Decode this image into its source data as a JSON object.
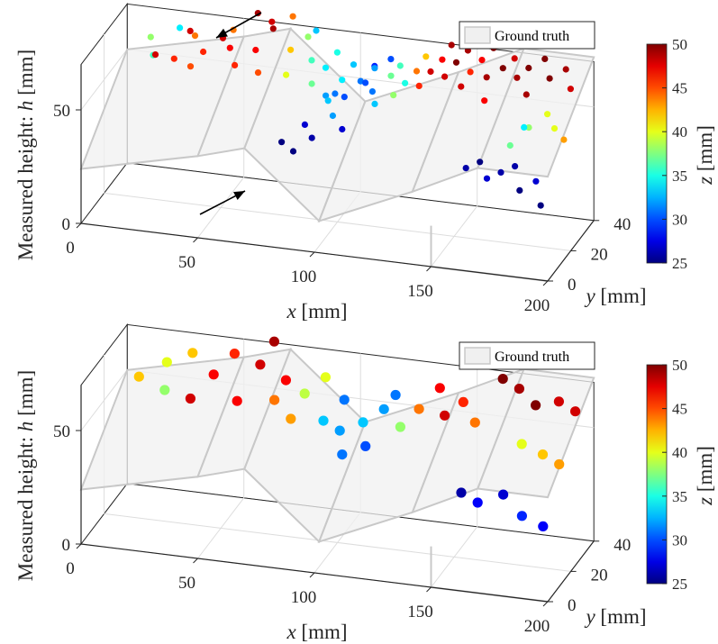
{
  "chart_data": [
    {
      "type": "scatter",
      "title": "",
      "subtitle": "",
      "xlabel": "x [mm]",
      "ylabel": "y [mm]",
      "zlabel": "Measured height:  h [mm]",
      "xlabel_var": "x",
      "xlabel_unit": "[mm]",
      "ylabel_var": "y",
      "ylabel_unit": "[mm]",
      "zlabel_prefix": "Measured height:  ",
      "zlabel_var": "h",
      "zlabel_unit": "[mm]",
      "xlim": [
        0,
        200
      ],
      "ylim": [
        0,
        40
      ],
      "zlim": [
        0,
        70
      ],
      "xticks": [
        "0",
        "50",
        "100",
        "150",
        "200"
      ],
      "yticks": [
        "0",
        "20",
        "40"
      ],
      "zticks": [
        "0",
        "50"
      ],
      "grid": true,
      "legend": {
        "position": "top-right",
        "entries": [
          "Ground truth"
        ]
      },
      "colorbar": {
        "label_var": "z",
        "label_unit": "[mm]",
        "range": [
          25,
          50
        ],
        "ticks": [
          "25",
          "30",
          "35",
          "40",
          "45",
          "50"
        ],
        "colormap": "jet"
      },
      "annotations": [
        "arrow pointing to topmost outlier",
        "arrow pointing to lowest outlier"
      ],
      "points": [
        [
          15,
          30,
          64,
          38
        ],
        [
          20,
          22,
          62,
          36
        ],
        [
          25,
          35,
          66,
          34
        ],
        [
          18,
          28,
          58,
          48
        ],
        [
          30,
          20,
          63,
          46
        ],
        [
          34,
          30,
          67,
          44
        ],
        [
          28,
          38,
          63,
          48
        ],
        [
          40,
          25,
          64,
          46
        ],
        [
          45,
          32,
          66,
          48
        ],
        [
          38,
          18,
          62,
          45
        ],
        [
          50,
          28,
          65,
          47
        ],
        [
          48,
          35,
          68,
          44
        ],
        [
          55,
          22,
          62,
          46
        ],
        [
          60,
          30,
          64,
          47
        ],
        [
          62,
          40,
          70,
          48
        ],
        [
          58,
          36,
          76,
          49
        ],
        [
          70,
          25,
          78,
          49
        ],
        [
          72,
          38,
          75,
          44
        ],
        [
          65,
          22,
          60,
          45
        ],
        [
          75,
          30,
          66,
          42
        ],
        [
          80,
          35,
          69,
          38
        ],
        [
          78,
          20,
          62,
          40
        ],
        [
          85,
          28,
          64,
          36
        ],
        [
          82,
          38,
          70,
          33
        ],
        [
          88,
          22,
          58,
          37
        ],
        [
          90,
          30,
          60,
          34
        ],
        [
          92,
          36,
          63,
          35
        ],
        [
          95,
          20,
          55,
          32
        ],
        [
          98,
          28,
          57,
          34
        ],
        [
          100,
          34,
          60,
          33
        ],
        [
          96,
          26,
          52,
          31
        ],
        [
          102,
          22,
          54,
          30
        ],
        [
          105,
          30,
          56,
          31
        ],
        [
          108,
          36,
          59,
          29
        ],
        [
          94,
          24,
          50,
          33
        ],
        [
          99,
          18,
          48,
          32
        ],
        [
          104,
          16,
          44,
          27
        ],
        [
          92,
          14,
          40,
          26
        ],
        [
          86,
          10,
          36,
          25
        ],
        [
          80,
          12,
          38,
          25
        ],
        [
          88,
          16,
          44,
          27
        ],
        [
          110,
          32,
          61,
          32
        ],
        [
          112,
          26,
          55,
          31
        ],
        [
          115,
          36,
          63,
          30
        ],
        [
          108,
          28,
          57,
          30
        ],
        [
          118,
          30,
          60,
          37
        ],
        [
          120,
          34,
          62,
          36
        ],
        [
          122,
          24,
          56,
          38
        ],
        [
          125,
          28,
          59,
          35
        ],
        [
          116,
          20,
          54,
          33
        ],
        [
          128,
          32,
          62,
          44
        ],
        [
          130,
          36,
          66,
          42
        ],
        [
          132,
          26,
          60,
          46
        ],
        [
          135,
          30,
          64,
          48
        ],
        [
          138,
          34,
          67,
          47
        ],
        [
          140,
          38,
          71,
          49
        ],
        [
          142,
          28,
          64,
          48
        ],
        [
          145,
          32,
          68,
          50
        ],
        [
          148,
          36,
          71,
          49
        ],
        [
          150,
          26,
          62,
          48
        ],
        [
          152,
          30,
          66,
          46
        ],
        [
          155,
          34,
          69,
          47
        ],
        [
          158,
          38,
          72,
          50
        ],
        [
          160,
          28,
          66,
          49
        ],
        [
          162,
          22,
          60,
          47
        ],
        [
          165,
          32,
          68,
          50
        ],
        [
          168,
          36,
          70,
          48
        ],
        [
          172,
          30,
          66,
          49
        ],
        [
          175,
          34,
          68,
          50
        ],
        [
          178,
          26,
          62,
          49
        ],
        [
          180,
          38,
          70,
          50
        ],
        [
          185,
          32,
          66,
          50
        ],
        [
          190,
          36,
          68,
          49
        ],
        [
          195,
          30,
          64,
          48
        ],
        [
          188,
          24,
          56,
          40
        ],
        [
          193,
          20,
          53,
          40
        ],
        [
          198,
          18,
          50,
          43
        ],
        [
          182,
          20,
          52,
          38
        ],
        [
          176,
          16,
          46,
          37
        ],
        [
          160,
          10,
          38,
          26
        ],
        [
          165,
          12,
          40,
          25
        ],
        [
          170,
          8,
          36,
          27
        ],
        [
          175,
          10,
          38,
          26
        ],
        [
          180,
          12,
          40,
          26
        ],
        [
          185,
          6,
          34,
          25
        ],
        [
          190,
          10,
          36,
          27
        ],
        [
          195,
          4,
          30,
          25
        ],
        [
          176,
          28,
          46,
          34
        ]
      ]
    },
    {
      "type": "scatter",
      "title": "",
      "subtitle": "",
      "xlabel": "x [mm]",
      "ylabel": "y [mm]",
      "zlabel": "Measured height:  h [mm]",
      "xlabel_var": "x",
      "xlabel_unit": "[mm]",
      "ylabel_var": "y",
      "ylabel_unit": "[mm]",
      "zlabel_prefix": "Measured height:  ",
      "zlabel_var": "h",
      "zlabel_unit": "[mm]",
      "xlim": [
        0,
        200
      ],
      "ylim": [
        0,
        40
      ],
      "zlim": [
        0,
        70
      ],
      "xticks": [
        "0",
        "50",
        "100",
        "150",
        "200"
      ],
      "yticks": [
        "0",
        "20",
        "40"
      ],
      "zticks": [
        "0",
        "50"
      ],
      "grid": true,
      "legend": {
        "position": "top-right",
        "entries": [
          "Ground truth"
        ]
      },
      "colorbar": {
        "label_var": "z",
        "label_unit": "[mm]",
        "range": [
          25,
          50
        ],
        "ticks": [
          "25",
          "30",
          "35",
          "40",
          "45",
          "50"
        ],
        "colormap": "jet"
      },
      "points": [
        [
          10,
          30,
          55,
          42
        ],
        [
          20,
          34,
          60,
          40
        ],
        [
          22,
          28,
          52,
          38
        ],
        [
          30,
          36,
          64,
          42
        ],
        [
          36,
          22,
          54,
          48
        ],
        [
          42,
          30,
          60,
          47
        ],
        [
          48,
          36,
          66,
          46
        ],
        [
          55,
          24,
          54,
          47
        ],
        [
          60,
          34,
          64,
          48
        ],
        [
          64,
          38,
          72,
          49
        ],
        [
          70,
          26,
          55,
          44
        ],
        [
          72,
          32,
          60,
          47
        ],
        [
          80,
          20,
          52,
          43
        ],
        [
          82,
          28,
          58,
          39
        ],
        [
          88,
          34,
          62,
          40
        ],
        [
          92,
          24,
          50,
          33
        ],
        [
          98,
          30,
          56,
          31
        ],
        [
          100,
          22,
          48,
          32
        ],
        [
          104,
          16,
          42,
          31
        ],
        [
          108,
          26,
          50,
          33
        ],
        [
          112,
          20,
          44,
          30
        ],
        [
          115,
          30,
          54,
          32
        ],
        [
          118,
          34,
          58,
          31
        ],
        [
          124,
          26,
          50,
          38
        ],
        [
          130,
          30,
          56,
          44
        ],
        [
          136,
          36,
          62,
          47
        ],
        [
          142,
          28,
          56,
          48
        ],
        [
          148,
          32,
          60,
          46
        ],
        [
          156,
          26,
          56,
          44
        ],
        [
          162,
          38,
          68,
          50
        ],
        [
          170,
          36,
          66,
          49
        ],
        [
          180,
          30,
          64,
          50
        ],
        [
          188,
          34,
          64,
          48
        ],
        [
          196,
          32,
          62,
          48
        ],
        [
          178,
          22,
          52,
          40
        ],
        [
          188,
          20,
          50,
          42
        ],
        [
          196,
          18,
          48,
          43
        ],
        [
          158,
          10,
          36,
          26
        ],
        [
          166,
          8,
          34,
          28
        ],
        [
          175,
          12,
          36,
          27
        ],
        [
          186,
          6,
          32,
          29
        ],
        [
          196,
          4,
          30,
          28
        ]
      ]
    }
  ],
  "colors": {
    "surface_fill": "#f0f0f0",
    "surface_edge": "#c8c8c8",
    "axis": "#262626",
    "grid": "#dddddd"
  }
}
